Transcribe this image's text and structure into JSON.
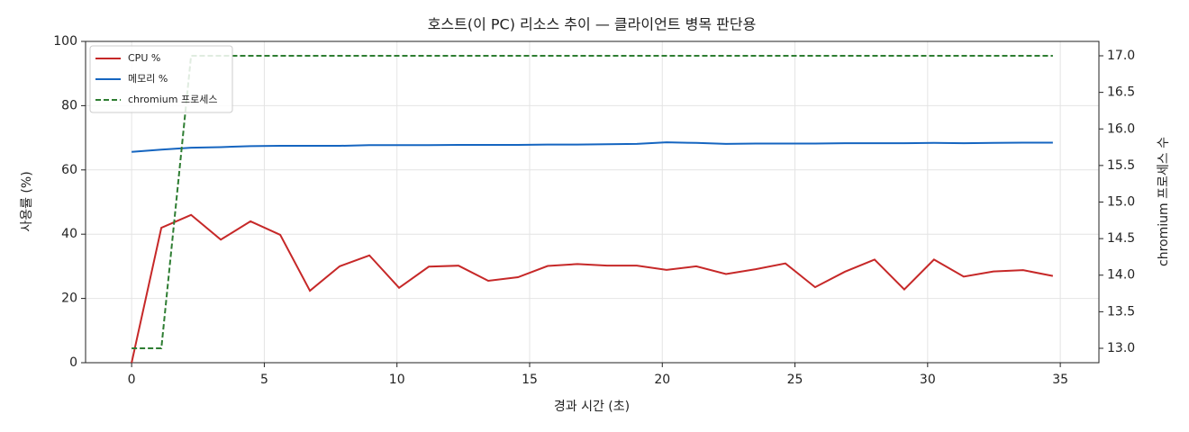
{
  "chart_data": {
    "type": "line",
    "title": "호스트(이 PC) 리소스 추이 — 클라이언트 병목 판단용",
    "x_label": "경과 시간 (초)",
    "y_label": "사용률 (%)",
    "y2_label": "chromium 프로세스 수",
    "x": [
      0,
      1.12,
      2.24,
      3.36,
      4.48,
      5.6,
      6.72,
      7.84,
      8.96,
      10.08,
      11.2,
      12.32,
      13.44,
      14.56,
      15.68,
      16.8,
      17.92,
      19.04,
      20.16,
      21.28,
      22.4,
      23.52,
      24.64,
      25.76,
      26.88,
      28.0,
      29.12,
      30.24,
      31.36,
      32.48,
      33.6,
      34.72
    ],
    "series": [
      {
        "name": "CPU %",
        "color": "#c62828",
        "dashed": false,
        "values": [
          0,
          42,
          46,
          38.3,
          44,
          39.8,
          22.4,
          30,
          33.4,
          23.3,
          29.9,
          30.2,
          25.5,
          26.6,
          30.1,
          30.7,
          30.2,
          30.2,
          28.9,
          30,
          27.6,
          29.1,
          30.9,
          23.5,
          28.3,
          32.1,
          22.8,
          32.1,
          26.8,
          28.4,
          28.8,
          27
        ]
      },
      {
        "name": "메모리 %",
        "color": "#1565c0",
        "dashed": false,
        "values": [
          65.6,
          66.3,
          66.9,
          67.1,
          67.4,
          67.5,
          67.5,
          67.5,
          67.7,
          67.7,
          67.7,
          67.8,
          67.8,
          67.8,
          67.9,
          67.9,
          68.0,
          68.1,
          68.6,
          68.4,
          68.1,
          68.2,
          68.2,
          68.2,
          68.3,
          68.3,
          68.3,
          68.4,
          68.3,
          68.4,
          68.5,
          68.5
        ]
      },
      {
        "name": "chromium 프로세스",
        "color": "#2e7d32",
        "dashed": true,
        "axis": "y2",
        "values": [
          13,
          13,
          17,
          17,
          17,
          17,
          17,
          17,
          17,
          17,
          17,
          17,
          17,
          17,
          17,
          17,
          17,
          17,
          17,
          17,
          17,
          17,
          17,
          17,
          17,
          17,
          17,
          17,
          17,
          17,
          17,
          17
        ]
      }
    ],
    "xlim": [
      -1.736,
      36.456
    ],
    "xticks": [
      0,
      5,
      10,
      15,
      20,
      25,
      30,
      35
    ],
    "ylim": [
      0,
      100
    ],
    "yticks": [
      0,
      20,
      40,
      60,
      80,
      100
    ],
    "y2lim": [
      12.803,
      17.197
    ],
    "y2ticks": [
      {
        "value": 13,
        "label": "13.0"
      },
      {
        "value": 13.5,
        "label": "13.5"
      },
      {
        "value": 14,
        "label": "14.0"
      },
      {
        "value": 14.5,
        "label": "14.5"
      },
      {
        "value": 15,
        "label": "15.0"
      },
      {
        "value": 15.5,
        "label": "15.5"
      },
      {
        "value": 16,
        "label": "16.0"
      },
      {
        "value": 16.5,
        "label": "16.5"
      },
      {
        "value": 17,
        "label": "17.0"
      }
    ],
    "grid": true,
    "legend": "upper-left"
  }
}
